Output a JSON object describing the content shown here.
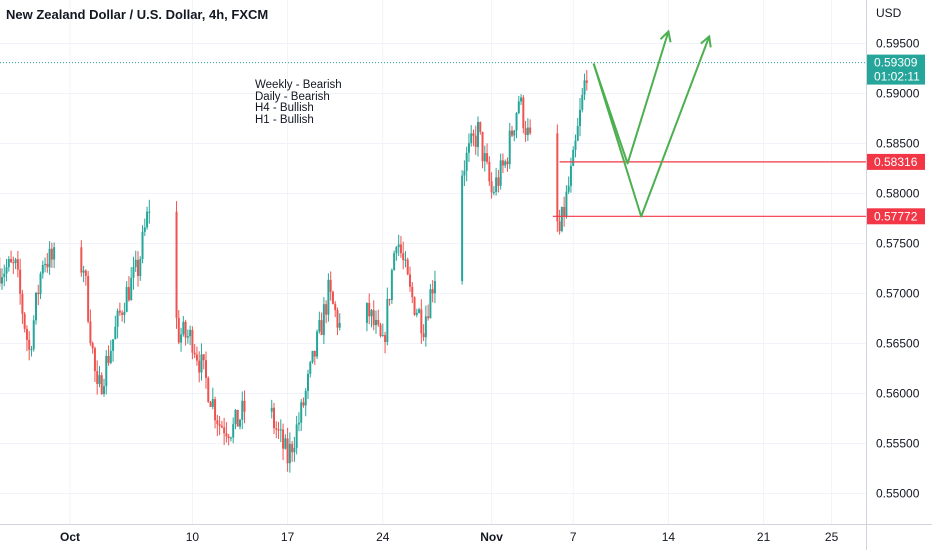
{
  "header": {
    "title": "New Zealand Dollar / U.S. Dollar, 4h, FXCM"
  },
  "annotations": {
    "weekly": "Weekly - Bearish",
    "daily": "Daily - Bearish",
    "h4": "H4 - Bullish",
    "h1": "H1 - Bullish"
  },
  "price_axis": {
    "currency": "USD",
    "ticks": [
      "0.59500",
      "0.59000",
      "0.58500",
      "0.58000",
      "0.57500",
      "0.57000",
      "0.56500",
      "0.56000",
      "0.55500",
      "0.55000"
    ],
    "current_price": "0.59309",
    "countdown": "01:02:11"
  },
  "time_axis": {
    "labels": [
      "Oct",
      "10",
      "17",
      "24",
      "Nov",
      "7",
      "14",
      "21",
      "25"
    ]
  },
  "colors": {
    "bull": "#26a69a",
    "bear": "#ef5350",
    "projection": "#4caf50",
    "level": "#f23645",
    "grid": "#f0f3fa"
  },
  "chart_data": {
    "type": "candlestick",
    "symbol": "NZDUSD",
    "timeframe": "4h",
    "ylim": [
      0.5485,
      0.5975
    ],
    "path_keypoints": [
      [
        "2023-09-27 00:00",
        0.5725
      ],
      [
        "2023-09-28 00:00",
        0.5642
      ],
      [
        "2023-09-29 00:00",
        0.5735
      ],
      [
        "2023-10-02 00:00",
        0.5728
      ],
      [
        "2023-10-03 00:00",
        0.5598
      ],
      [
        "2023-10-05 00:00",
        0.5695
      ],
      [
        "2023-10-06 00:00",
        0.5725
      ],
      [
        "2023-10-07 00:00",
        0.58
      ],
      [
        "2023-10-09 00:00",
        0.566
      ],
      [
        "2023-10-10 00:00",
        0.5655
      ],
      [
        "2023-10-12 00:00",
        0.557
      ],
      [
        "2023-10-13 00:00",
        0.5565
      ],
      [
        "2023-10-15 00:00",
        0.561
      ],
      [
        "2023-10-16 00:00",
        0.557
      ],
      [
        "2023-10-17 00:00",
        0.5535
      ],
      [
        "2023-10-18 00:00",
        0.558
      ],
      [
        "2023-10-19 00:00",
        0.564
      ],
      [
        "2023-10-20 00:00",
        0.57
      ],
      [
        "2023-10-21 00:00",
        0.566
      ],
      [
        "2023-10-23 00:00",
        0.568
      ],
      [
        "2023-10-24 00:00",
        0.5645
      ],
      [
        "2023-10-25 00:00",
        0.576
      ],
      [
        "2023-10-26 00:00",
        0.57
      ],
      [
        "2023-10-27 00:00",
        0.567
      ],
      [
        "2023-10-28 00:00",
        0.573
      ],
      [
        "2023-10-29 00:00",
        0.579
      ],
      [
        "2023-10-30 00:00",
        0.583
      ],
      [
        "2023-10-31 00:00",
        0.5862
      ],
      [
        "2023-11-01 00:00",
        0.58
      ],
      [
        "2023-11-02 00:00",
        0.583
      ],
      [
        "2023-11-03 00:00",
        0.5895
      ],
      [
        "2023-11-04 00:00",
        0.584
      ],
      [
        "2023-11-05 00:00",
        0.581
      ],
      [
        "2023-11-06 00:00",
        0.576
      ],
      [
        "2023-11-07 00:00",
        0.583
      ],
      [
        "2023-11-08 00:00",
        0.5925
      ]
    ],
    "last_price": 0.59309,
    "levels": [
      {
        "price": 0.58316,
        "label": "0.58316",
        "from": "2023-11-06 00:00"
      },
      {
        "price": 0.57772,
        "label": "0.57772",
        "from": "2023-11-05 12:00"
      }
    ],
    "projections": [
      {
        "points": [
          [
            "2023-11-08 12:00",
            0.593
          ],
          [
            "2023-11-11 00:00",
            0.583
          ],
          [
            "2023-11-14 00:00",
            0.5962
          ]
        ]
      },
      {
        "points": [
          [
            "2023-11-08 12:00",
            0.593
          ],
          [
            "2023-11-12 00:00",
            0.5777
          ],
          [
            "2023-11-17 00:00",
            0.5957
          ]
        ]
      }
    ],
    "x_ticks": [
      "Oct",
      "10",
      "17",
      "24",
      "Nov",
      "7",
      "14",
      "21",
      "25"
    ],
    "y_ticks": [
      0.595,
      0.59,
      0.585,
      0.58,
      0.575,
      0.57,
      0.565,
      0.56,
      0.555,
      0.55
    ],
    "grid": true
  }
}
